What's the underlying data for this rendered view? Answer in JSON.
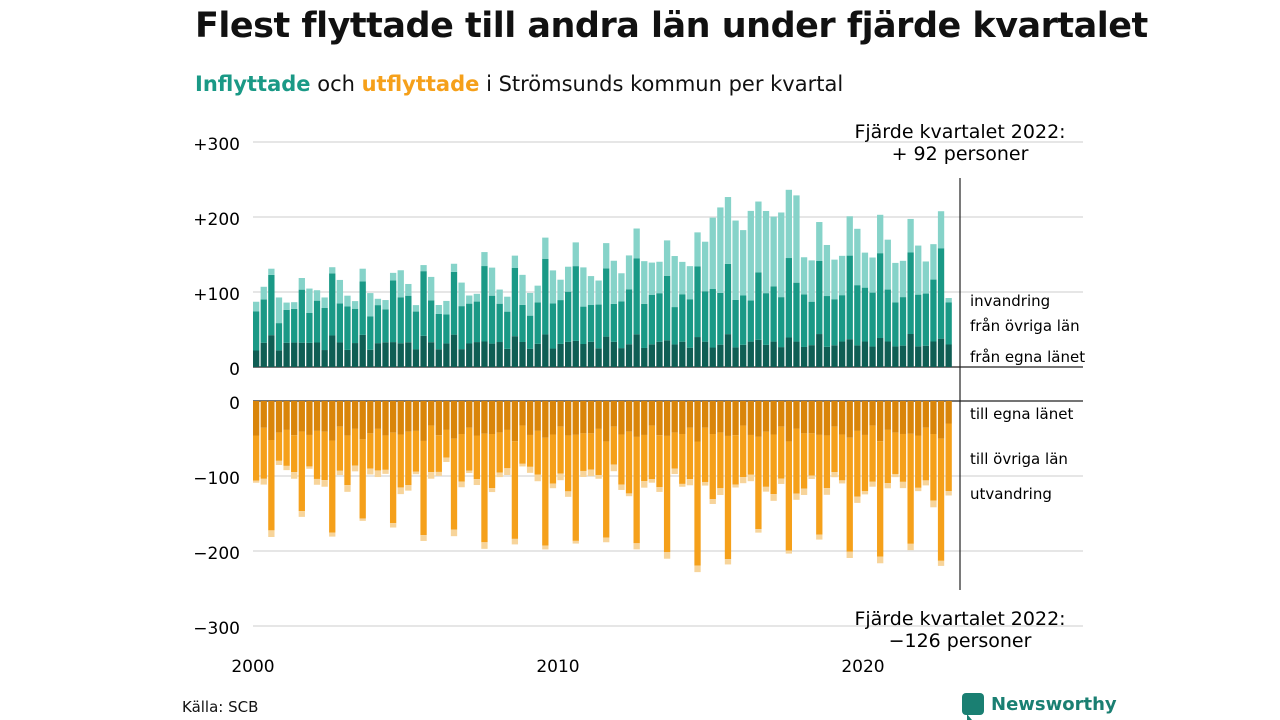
{
  "title": "Flest flyttade till andra län under fjärde kvartalet",
  "subtitle": {
    "in_word": "Inflyttade",
    "and_word": " och ",
    "out_word": "utflyttade",
    "rest": " i Strömsunds kommun per kvartal"
  },
  "source": "Källa: SCB",
  "brand": "Newsworthy",
  "colors": {
    "in_egna": "#0f5e54",
    "in_ovriga": "#1a9986",
    "in_invandring": "#86d3c9",
    "out_egna": "#d9850a",
    "out_ovriga": "#f5a01a",
    "out_utvandring": "#f7d49a",
    "grid": "#dddddd"
  },
  "chart_data": {
    "type": "bar",
    "stacked": true,
    "diverging": true,
    "title": "Flest flyttade till andra län under fjärde kvartalet",
    "subtitle": "Inflyttade och utflyttade i Strömsunds kommun per kvartal",
    "x_tick_labels": [
      "2000",
      "2010",
      "2020"
    ],
    "y_tick_labels": [
      "+300",
      "+200",
      "+100",
      "0",
      "0",
      "−100",
      "−200",
      "−300"
    ],
    "ylim_in": [
      0,
      300
    ],
    "ylim_out": [
      -300,
      0
    ],
    "grid": true,
    "n_quarters": 92,
    "note": "Approximate readings: quarterly stacks from Q1 2000 to Q4 2022. Inflyttade ranges roughly 50–250 per quarter, peaking near 250 in 2017. Utflyttade ranges roughly 80–250, deepest around 2014–2015.",
    "series_in": [
      {
        "name": "invandring"
      },
      {
        "name": "från övriga län"
      },
      {
        "name": "från egna länet"
      }
    ],
    "series_out": [
      {
        "name": "till egna länet"
      },
      {
        "name": "till övriga län"
      },
      {
        "name": "utvandring"
      }
    ],
    "annotation_top": {
      "line1": "Fjärde kvartalet 2022:",
      "line2": "+ 92 personer"
    },
    "annotation_bottom": {
      "line1": "Fjärde kvartalet 2022:",
      "line2": "−126 personer"
    },
    "last_in": {
      "egna": 30,
      "ovriga": 56,
      "invandring": 6
    },
    "last_out": {
      "egna": 30,
      "ovriga": 90,
      "utvandring": 6
    }
  }
}
